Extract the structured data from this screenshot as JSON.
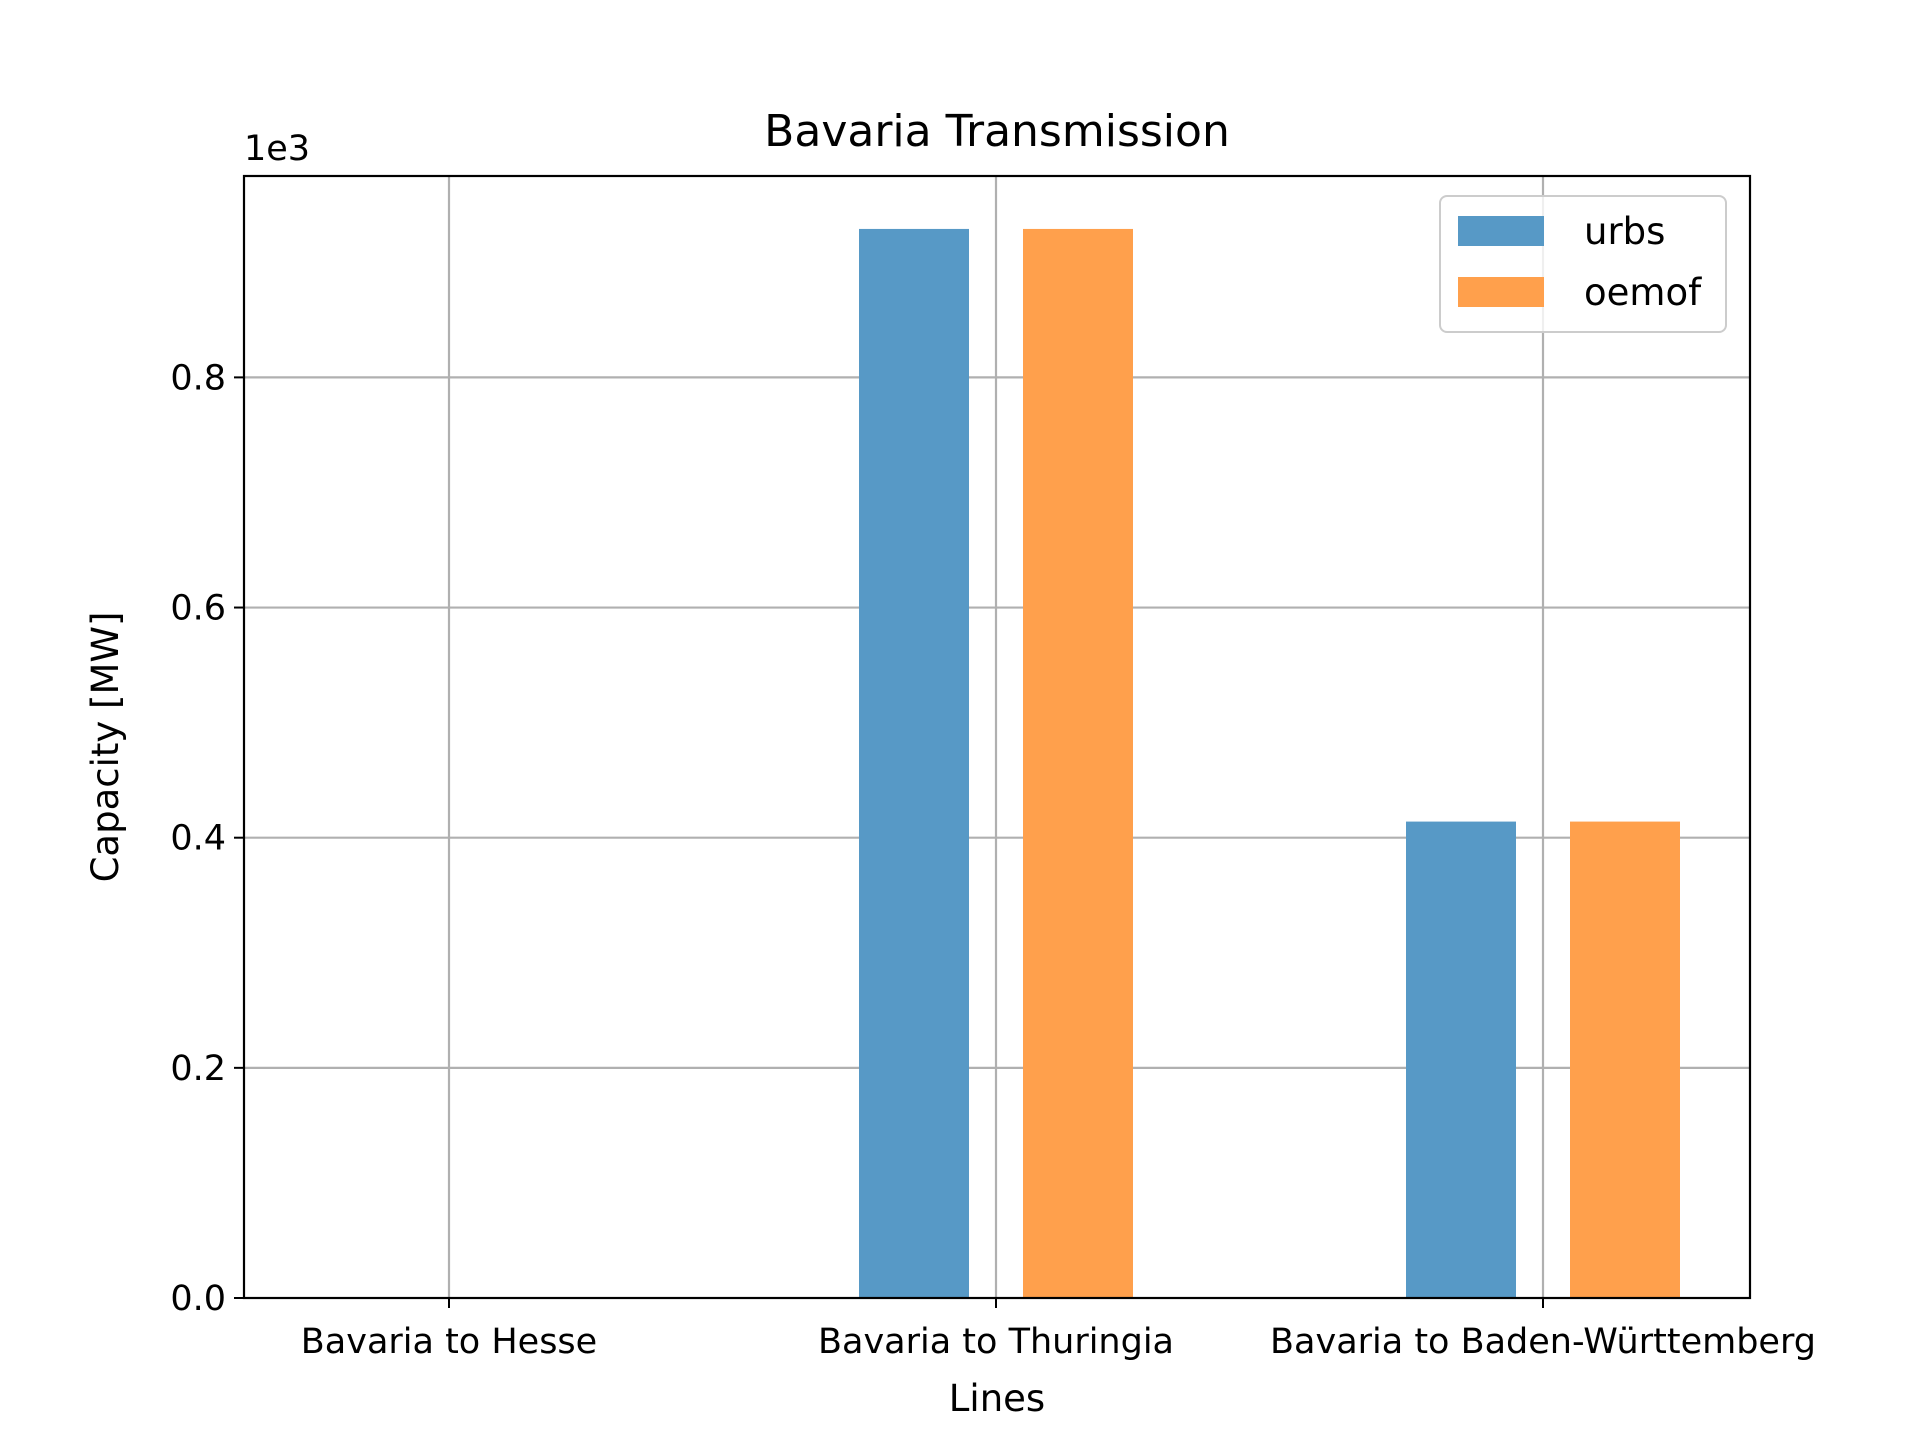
{
  "chart_data": {
    "type": "bar",
    "title": "Bavaria Transmission",
    "xlabel": "Lines",
    "ylabel": "Capacity [MW]",
    "offset_label": "1e3",
    "categories": [
      "Bavaria to Hesse",
      "Bavaria to Thuringia",
      "Bavaria to Baden-Württemberg"
    ],
    "series": [
      {
        "name": "urbs",
        "values": [
          0,
          929,
          414
        ],
        "color": "#5799c6"
      },
      {
        "name": "oemof",
        "values": [
          0,
          929,
          414
        ],
        "color": "#ffa04c"
      }
    ],
    "ylim": [
      0,
      975
    ],
    "yticks": [
      0,
      200,
      400,
      600,
      800
    ],
    "ytick_labels": [
      "0.0",
      "0.2",
      "0.4",
      "0.6",
      "0.8"
    ],
    "grid": true,
    "legend_position": "top-right"
  }
}
